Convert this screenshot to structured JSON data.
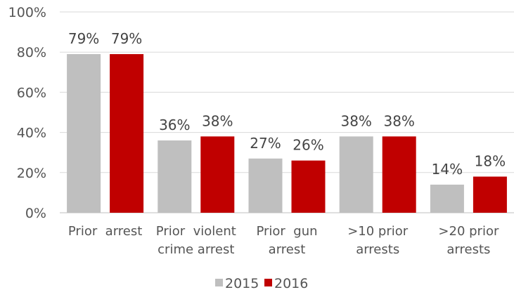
{
  "chart_data": {
    "type": "bar",
    "categories": [
      [
        "Prior  arrest"
      ],
      [
        "Prior  violent",
        "crime arrest"
      ],
      [
        "Prior  gun",
        "arrest"
      ],
      [
        ">10 prior",
        "arrests"
      ],
      [
        ">20 prior",
        "arrests"
      ]
    ],
    "series": [
      {
        "name": "2015",
        "values": [
          79,
          36,
          27,
          38,
          14
        ],
        "color": "#bfbfbf"
      },
      {
        "name": "2016",
        "values": [
          79,
          38,
          26,
          38,
          18
        ],
        "color": "#c00000"
      }
    ],
    "ylim": [
      0,
      100
    ],
    "yticks": [
      0,
      20,
      40,
      60,
      80,
      100
    ],
    "y_tick_suffix": "%",
    "data_label_suffix": "%",
    "grid": true,
    "legend": "bottom-center"
  }
}
